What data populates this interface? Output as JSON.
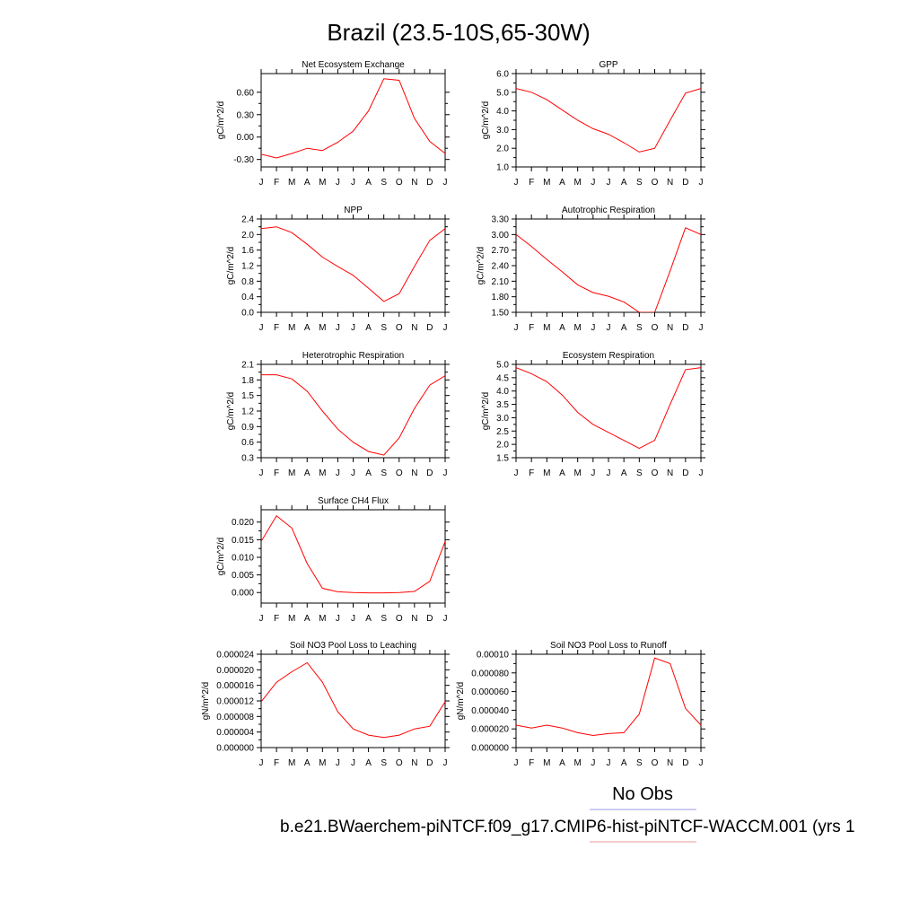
{
  "title": "Brazil (23.5-10S,65-30W)",
  "months": [
    "J",
    "F",
    "M",
    "A",
    "M",
    "J",
    "J",
    "A",
    "S",
    "O",
    "N",
    "D",
    "J"
  ],
  "legend": {
    "label": "No Obs",
    "colors": [
      "#9999ee",
      "#ee9999"
    ]
  },
  "case_label": "b.e21.BWaerchem-piNTCF.f09_g17.CMIP6-hist-piNTCF-WACCM.001 (yrs 1",
  "series_color": "#ff0000",
  "chart_data": [
    {
      "type": "line",
      "title": "Net Ecosystem Exchange",
      "ylabel": "gC/m^2/d",
      "categories": [
        "J",
        "F",
        "M",
        "A",
        "M",
        "J",
        "J",
        "A",
        "S",
        "O",
        "N",
        "D",
        "J"
      ],
      "ylim": [
        -0.4,
        0.85
      ],
      "ticks": [
        "-0.30",
        "0.00",
        "0.30",
        "0.60"
      ],
      "tick_values": [
        -0.3,
        0.0,
        0.3,
        0.6
      ],
      "values": [
        -0.23,
        -0.28,
        -0.22,
        -0.15,
        -0.18,
        -0.07,
        0.08,
        0.35,
        0.78,
        0.76,
        0.25,
        -0.06,
        -0.22
      ]
    },
    {
      "type": "line",
      "title": "GPP",
      "ylabel": "gC/m^2/d",
      "categories": [
        "J",
        "F",
        "M",
        "A",
        "M",
        "J",
        "J",
        "A",
        "S",
        "O",
        "N",
        "D",
        "J"
      ],
      "ylim": [
        1.0,
        6.0
      ],
      "ticks": [
        "1.0",
        "2.0",
        "3.0",
        "4.0",
        "5.0",
        "6.0"
      ],
      "tick_values": [
        1.0,
        2.0,
        3.0,
        4.0,
        5.0,
        6.0
      ],
      "values": [
        5.2,
        5.0,
        4.6,
        4.05,
        3.5,
        3.05,
        2.75,
        2.3,
        1.8,
        2.0,
        3.5,
        4.95,
        5.2
      ]
    },
    {
      "type": "line",
      "title": "NPP",
      "ylabel": "gC/m^2/d",
      "categories": [
        "J",
        "F",
        "M",
        "A",
        "M",
        "J",
        "J",
        "A",
        "S",
        "O",
        "N",
        "D",
        "J"
      ],
      "ylim": [
        0.0,
        2.4
      ],
      "ticks": [
        "0.0",
        "0.4",
        "0.8",
        "1.2",
        "1.6",
        "2.0",
        "2.4"
      ],
      "tick_values": [
        0.0,
        0.4,
        0.8,
        1.2,
        1.6,
        2.0,
        2.4
      ],
      "values": [
        2.15,
        2.2,
        2.05,
        1.75,
        1.42,
        1.18,
        0.95,
        0.62,
        0.28,
        0.48,
        1.18,
        1.85,
        2.15
      ]
    },
    {
      "type": "line",
      "title": "Autotrophic Respiration",
      "ylabel": "gC/m^2/d",
      "categories": [
        "J",
        "F",
        "M",
        "A",
        "M",
        "J",
        "J",
        "A",
        "S",
        "O",
        "N",
        "D",
        "J"
      ],
      "ylim": [
        1.5,
        3.3
      ],
      "ticks": [
        "1.50",
        "1.80",
        "2.10",
        "2.40",
        "2.70",
        "3.00",
        "3.30"
      ],
      "tick_values": [
        1.5,
        1.8,
        2.1,
        2.4,
        2.7,
        3.0,
        3.3
      ],
      "values": [
        3.0,
        2.77,
        2.52,
        2.28,
        2.03,
        1.88,
        1.81,
        1.7,
        1.5,
        1.5,
        2.3,
        3.13,
        3.0
      ]
    },
    {
      "type": "line",
      "title": "Heterotrophic Respiration",
      "ylabel": "gC/m^2/d",
      "categories": [
        "J",
        "F",
        "M",
        "A",
        "M",
        "J",
        "J",
        "A",
        "S",
        "O",
        "N",
        "D",
        "J"
      ],
      "ylim": [
        0.3,
        2.1
      ],
      "ticks": [
        "0.3",
        "0.6",
        "0.9",
        "1.2",
        "1.5",
        "1.8",
        "2.1"
      ],
      "tick_values": [
        0.3,
        0.6,
        0.9,
        1.2,
        1.5,
        1.8,
        2.1
      ],
      "values": [
        1.9,
        1.9,
        1.82,
        1.58,
        1.2,
        0.85,
        0.6,
        0.42,
        0.35,
        0.68,
        1.25,
        1.7,
        1.88
      ]
    },
    {
      "type": "line",
      "title": "Ecosystem Respiration",
      "ylabel": "gC/m^2/d",
      "categories": [
        "J",
        "F",
        "M",
        "A",
        "M",
        "J",
        "J",
        "A",
        "S",
        "O",
        "N",
        "D",
        "J"
      ],
      "ylim": [
        1.5,
        5.0
      ],
      "ticks": [
        "1.5",
        "2.0",
        "2.5",
        "3.0",
        "3.5",
        "4.0",
        "4.5",
        "5.0"
      ],
      "tick_values": [
        1.5,
        2.0,
        2.5,
        3.0,
        3.5,
        4.0,
        4.5,
        5.0
      ],
      "values": [
        4.88,
        4.65,
        4.35,
        3.85,
        3.2,
        2.75,
        2.45,
        2.15,
        1.85,
        2.15,
        3.5,
        4.8,
        4.88
      ]
    },
    {
      "type": "line",
      "title": "Surface CH4 Flux",
      "ylabel": "gC/m^2/d",
      "categories": [
        "J",
        "F",
        "M",
        "A",
        "M",
        "J",
        "J",
        "A",
        "S",
        "O",
        "N",
        "D",
        "J"
      ],
      "ylim": [
        -0.003,
        0.0235
      ],
      "ticks": [
        "0.000",
        "0.005",
        "0.010",
        "0.015",
        "0.020"
      ],
      "tick_values": [
        0.0,
        0.005,
        0.01,
        0.015,
        0.02
      ],
      "values": [
        0.0145,
        0.0218,
        0.0183,
        0.0082,
        0.0012,
        0.0002,
        0.0,
        -0.0001,
        -0.0001,
        0.0,
        0.0003,
        0.0032,
        0.0145
      ]
    },
    {
      "type": "line",
      "title": "Soil NO3 Pool Loss to Leaching",
      "ylabel": "gN/m^2/d",
      "categories": [
        "J",
        "F",
        "M",
        "A",
        "M",
        "J",
        "J",
        "A",
        "S",
        "O",
        "N",
        "D",
        "J"
      ],
      "ylim": [
        0.0,
        2.4e-05
      ],
      "ticks": [
        "0.000000",
        "0.000004",
        "0.000008",
        "0.000012",
        "0.000016",
        "0.000020",
        "0.000024"
      ],
      "tick_values": [
        0.0,
        4e-06,
        8e-06,
        1.2e-05,
        1.6e-05,
        2e-05,
        2.4e-05
      ],
      "values": [
        1.18e-05,
        1.68e-05,
        1.95e-05,
        2.18e-05,
        1.68e-05,
        9.2e-06,
        4.8e-06,
        3.2e-06,
        2.6e-06,
        3.2e-06,
        4.8e-06,
        5.5e-06,
        1.18e-05
      ]
    },
    {
      "type": "line",
      "title": "Soil NO3 Pool Loss to Runoff",
      "ylabel": "gN/m^2/d",
      "categories": [
        "J",
        "F",
        "M",
        "A",
        "M",
        "J",
        "J",
        "A",
        "S",
        "O",
        "N",
        "D",
        "J"
      ],
      "ylim": [
        0.0,
        0.0001
      ],
      "ticks": [
        "0.000000",
        "0.000020",
        "0.000040",
        "0.000060",
        "0.000080",
        "0.00010"
      ],
      "tick_values": [
        0.0,
        2e-05,
        4e-05,
        6e-05,
        8e-05,
        0.0001
      ],
      "values": [
        2.4e-05,
        2.1e-05,
        2.4e-05,
        2.1e-05,
        1.6e-05,
        1.3e-05,
        1.5e-05,
        1.6e-05,
        3.6e-05,
        9.6e-05,
        9e-05,
        4.2e-05,
        2.4e-05
      ]
    }
  ]
}
